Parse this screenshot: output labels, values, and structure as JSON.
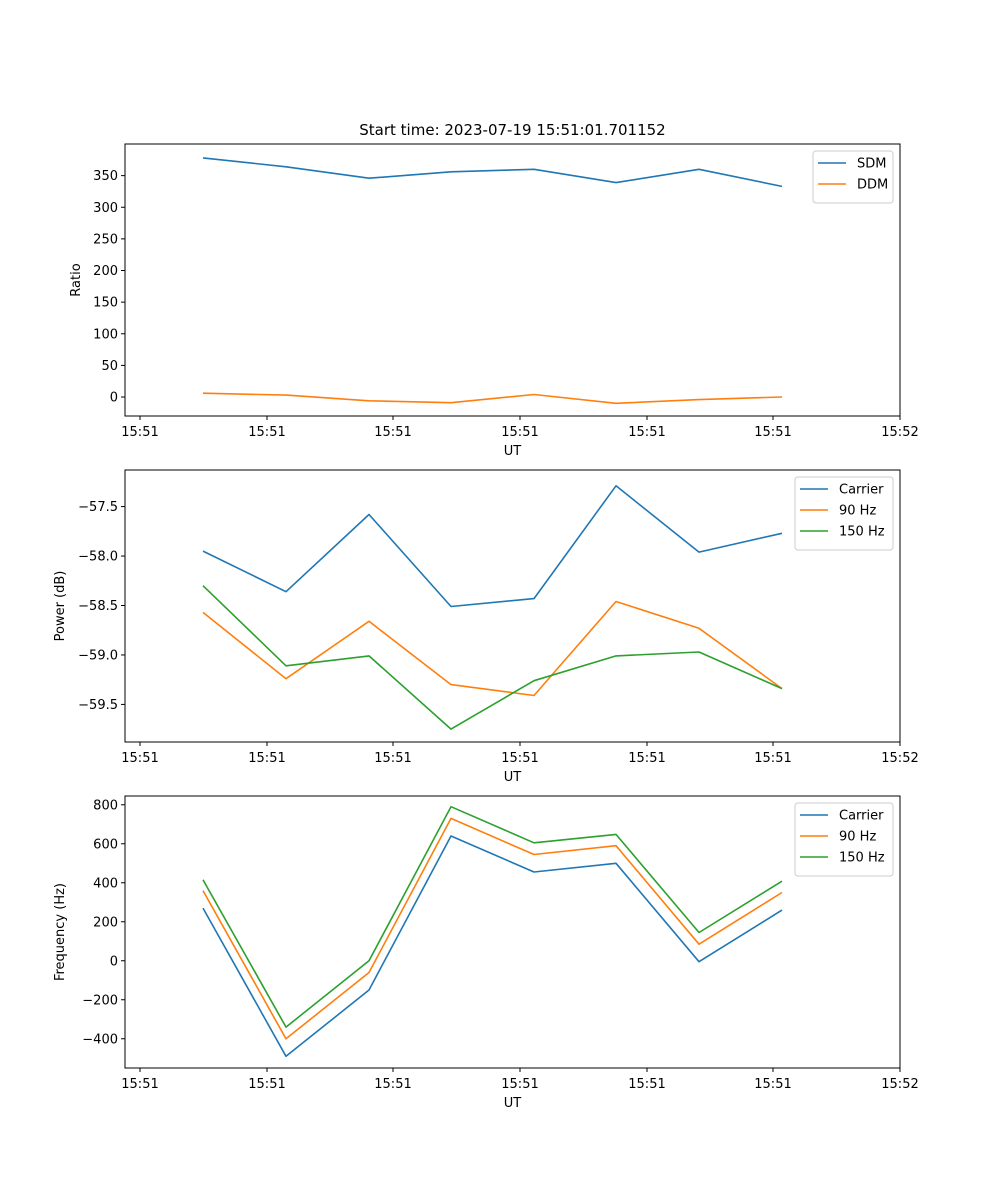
{
  "chart_data": [
    {
      "type": "line",
      "title": "Start time: 2023-07-19 15:51:01.701152",
      "xlabel": "UT",
      "ylabel": "Ratio",
      "x_tick_labels": [
        "15:51",
        "15:51",
        "15:51",
        "15:51",
        "15:51",
        "15:51",
        "15:52"
      ],
      "y_ticks": [
        0,
        50,
        100,
        150,
        200,
        250,
        300,
        350
      ],
      "y_tick_labels": [
        "0",
        "50",
        "100",
        "150",
        "200",
        "250",
        "300",
        "350"
      ],
      "ylim": [
        -30,
        400
      ],
      "legend_position": "top-right",
      "series": [
        {
          "name": "SDM",
          "color": "#1f77b4",
          "values": [
            378,
            364,
            346,
            356,
            360,
            339,
            360,
            333
          ]
        },
        {
          "name": "DDM",
          "color": "#ff7f0e",
          "values": [
            6,
            3,
            -6,
            -9,
            4,
            -10,
            -4,
            0
          ]
        }
      ]
    },
    {
      "type": "line",
      "title": "",
      "xlabel": "UT",
      "ylabel": "Power (dB)",
      "x_tick_labels": [
        "15:51",
        "15:51",
        "15:51",
        "15:51",
        "15:51",
        "15:51",
        "15:52"
      ],
      "y_ticks": [
        -59.5,
        -59.0,
        -58.5,
        -58.0,
        -57.5
      ],
      "y_tick_labels": [
        "−59.5",
        "−59.0",
        "−58.5",
        "−58.0",
        "−57.5"
      ],
      "ylim": [
        -59.88,
        -57.13
      ],
      "legend_position": "top-right",
      "series": [
        {
          "name": "Carrier",
          "color": "#1f77b4",
          "values": [
            -57.95,
            -58.36,
            -57.58,
            -58.51,
            -58.43,
            -57.29,
            -57.96,
            -57.77
          ]
        },
        {
          "name": "90 Hz",
          "color": "#ff7f0e",
          "values": [
            -58.57,
            -59.24,
            -58.66,
            -59.3,
            -59.41,
            -58.46,
            -58.73,
            -59.34
          ]
        },
        {
          "name": "150 Hz",
          "color": "#2ca02c",
          "values": [
            -58.3,
            -59.11,
            -59.01,
            -59.75,
            -59.26,
            -59.01,
            -58.97,
            -59.34
          ]
        }
      ]
    },
    {
      "type": "line",
      "title": "",
      "xlabel": "UT",
      "ylabel": "Frequency (Hz)",
      "x_tick_labels": [
        "15:51",
        "15:51",
        "15:51",
        "15:51",
        "15:51",
        "15:51",
        "15:52"
      ],
      "y_ticks": [
        -400,
        -200,
        0,
        200,
        400,
        600,
        800
      ],
      "y_tick_labels": [
        "−400",
        "−200",
        "0",
        "200",
        "400",
        "600",
        "800"
      ],
      "ylim": [
        -550,
        845
      ],
      "legend_position": "top-right",
      "series": [
        {
          "name": "Carrier",
          "color": "#1f77b4",
          "values": [
            270,
            -490,
            -150,
            640,
            455,
            500,
            -5,
            260
          ]
        },
        {
          "name": "90 Hz",
          "color": "#ff7f0e",
          "values": [
            360,
            -400,
            -60,
            730,
            545,
            590,
            85,
            350
          ]
        },
        {
          "name": "150 Hz",
          "color": "#2ca02c",
          "values": [
            415,
            -340,
            0,
            790,
            605,
            648,
            145,
            408
          ]
        }
      ]
    }
  ]
}
